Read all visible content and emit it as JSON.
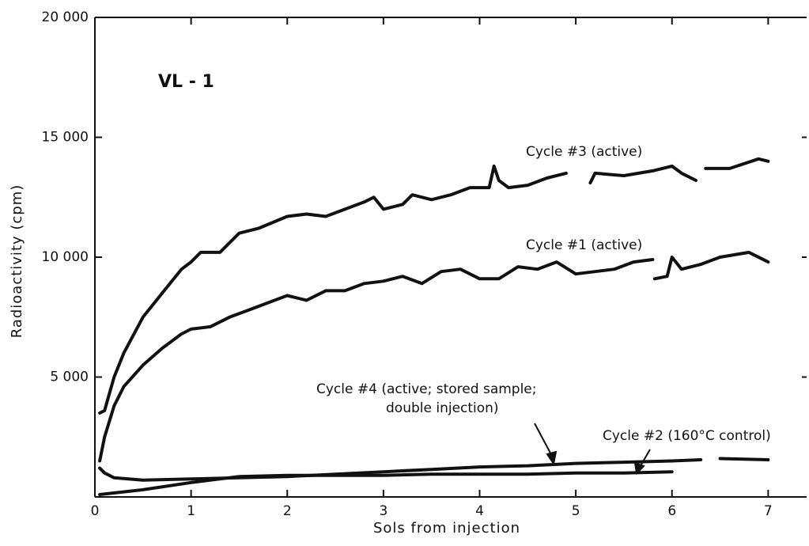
{
  "chart_data": {
    "type": "line",
    "x_label": "Sols from injection",
    "y_label": "Radioactivity (cpm)",
    "xlim": [
      0,
      7.4
    ],
    "ylim": [
      0,
      20000
    ],
    "xticks": [
      0,
      1,
      2,
      3,
      4,
      5,
      6,
      7
    ],
    "yticks": [
      {
        "value": 5000,
        "label": "5 000"
      },
      {
        "value": 10000,
        "label": "10 000"
      },
      {
        "value": 15000,
        "label": "15 000"
      },
      {
        "value": 20000,
        "label": "20 000"
      }
    ],
    "grid": false,
    "annotations": [
      "VL - 1",
      "Cycle #3 (active)",
      "Cycle #1 (active)",
      "Cycle #4 (active; stored sample;",
      "double injection)",
      "Cycle #2 (160°C control)"
    ],
    "series": [
      {
        "name": "Cycle #3 (active)",
        "color": "#111111",
        "x": [
          0.05,
          0.1,
          0.2,
          0.3,
          0.5,
          0.7,
          0.9,
          1.0,
          1.1,
          1.3,
          1.5,
          1.7,
          2.0,
          2.2,
          2.4,
          2.6,
          2.8,
          2.9,
          3.0,
          3.2,
          3.3,
          3.5,
          3.7,
          3.9,
          4.1,
          4.15,
          4.2,
          4.3,
          4.5,
          4.7,
          4.9,
          5.0,
          5.15,
          5.2,
          5.5,
          5.8,
          6.0,
          6.1,
          6.25,
          6.3,
          6.35,
          6.6,
          6.9,
          7.0
        ],
        "values": [
          3500,
          3600,
          5000,
          6000,
          7500,
          8500,
          9500,
          9800,
          10200,
          10200,
          11000,
          11200,
          11700,
          11800,
          11700,
          12000,
          12300,
          12500,
          12000,
          12200,
          12600,
          12400,
          12600,
          12900,
          12900,
          13800,
          13200,
          12900,
          13000,
          13300,
          13500,
          null,
          13100,
          13500,
          13400,
          13600,
          13800,
          13500,
          13200,
          null,
          13700,
          13700,
          14100,
          14000
        ]
      },
      {
        "name": "Cycle #1 (active)",
        "color": "#111111",
        "x": [
          0.05,
          0.1,
          0.2,
          0.3,
          0.5,
          0.7,
          0.9,
          1.0,
          1.2,
          1.4,
          1.6,
          1.8,
          2.0,
          2.2,
          2.4,
          2.6,
          2.8,
          3.0,
          3.2,
          3.4,
          3.6,
          3.8,
          4.0,
          4.2,
          4.4,
          4.6,
          4.8,
          5.0,
          5.2,
          5.4,
          5.6,
          5.8,
          5.81,
          5.82,
          5.95,
          6.0,
          6.1,
          6.3,
          6.5,
          6.8,
          7.0
        ],
        "values": [
          1500,
          2500,
          3800,
          4600,
          5500,
          6200,
          6800,
          7000,
          7100,
          7500,
          7800,
          8100,
          8400,
          8200,
          8600,
          8600,
          8900,
          9000,
          9200,
          8900,
          9400,
          9500,
          9100,
          9100,
          9600,
          9500,
          9800,
          9300,
          9400,
          9500,
          9800,
          9900,
          null,
          9100,
          9200,
          10000,
          9500,
          9700,
          10000,
          10200,
          9800
        ]
      },
      {
        "name": "Cycle #4 (active; stored sample; double injection)",
        "color": "#111111",
        "x": [
          0.05,
          0.1,
          0.2,
          0.5,
          1.0,
          1.5,
          2.0,
          2.5,
          3.0,
          3.5,
          4.0,
          4.5,
          5.0,
          5.5,
          6.0,
          6.3,
          6.4,
          6.5,
          7.0
        ],
        "values": [
          1200,
          1000,
          800,
          700,
          750,
          800,
          850,
          950,
          1050,
          1150,
          1250,
          1300,
          1400,
          1450,
          1500,
          1550,
          null,
          1600,
          1550
        ]
      },
      {
        "name": "Cycle #2 (160°C control)",
        "color": "#111111",
        "x": [
          0.05,
          0.5,
          1.0,
          1.5,
          2.0,
          2.5,
          3.0,
          3.5,
          4.0,
          4.5,
          5.0,
          5.5,
          6.0
        ],
        "values": [
          100,
          300,
          600,
          850,
          900,
          900,
          900,
          950,
          950,
          950,
          1000,
          1000,
          1050
        ]
      }
    ]
  }
}
